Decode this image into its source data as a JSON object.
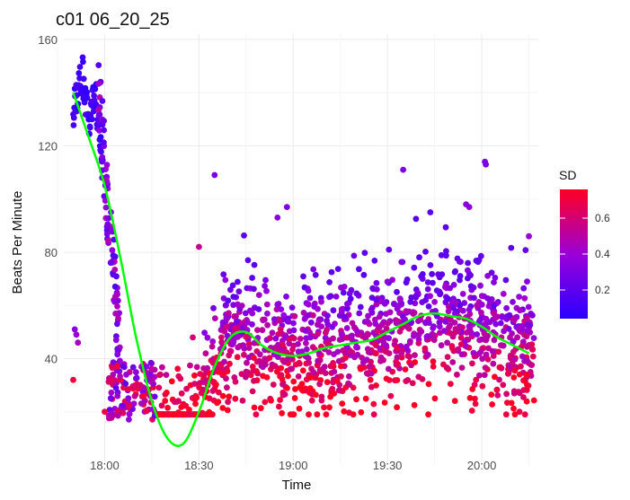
{
  "chart_data": {
    "type": "scatter",
    "title": "c01 06_20_25",
    "xlabel": "Time",
    "ylabel": "Beats Per Minute",
    "x_ticks": [
      "18:00",
      "18:30",
      "19:00",
      "19:30",
      "20:00"
    ],
    "x_tick_minutes": [
      1080,
      1110,
      1140,
      1170,
      1200
    ],
    "xlim_minutes": [
      1067,
      1218
    ],
    "y_ticks": [
      40,
      80,
      120,
      160
    ],
    "ylim": [
      0,
      162
    ],
    "grid": true,
    "legend": {
      "title": "SD",
      "ticks": [
        0.2,
        0.4,
        0.6
      ],
      "range": [
        0.04,
        0.76
      ],
      "colors": {
        "low": "#2b00ff",
        "mid": "#9b00d8",
        "high": "#ff0022"
      },
      "placement": "right"
    },
    "smooth_line": {
      "color": "#00ff00",
      "minutes": [
        1070,
        1075,
        1080,
        1085,
        1090,
        1095,
        1100,
        1105,
        1110,
        1115,
        1120,
        1125,
        1130,
        1135,
        1140,
        1145,
        1150,
        1155,
        1160,
        1165,
        1170,
        1175,
        1180,
        1185,
        1190,
        1195,
        1200,
        1205,
        1210,
        1215
      ],
      "bpm": [
        140,
        123,
        105,
        78,
        48,
        24,
        10,
        8,
        20,
        37,
        48,
        50,
        45,
        42,
        41,
        42,
        44,
        45,
        46,
        47,
        50,
        53,
        56,
        57,
        56,
        55,
        52,
        48,
        45,
        42
      ]
    },
    "series": [
      {
        "segment": "early-high",
        "minutes": [
          1070,
          1073,
          1075,
          1078
        ],
        "bpm_range": [
          125,
          155
        ],
        "sd": 0.1
      },
      {
        "segment": "descent",
        "minutes": [
          1078,
          1085
        ],
        "bpm_range": [
          20,
          140
        ],
        "sd": 0.3
      },
      {
        "segment": "trough",
        "minutes": [
          1080,
          1096
        ],
        "bpm_range": [
          15,
          40
        ],
        "sd": 0.6
      },
      {
        "segment": "plateau",
        "minutes": [
          1096,
          1217
        ],
        "bpm_range": [
          20,
          100
        ],
        "sd": 0.55
      }
    ],
    "outliers": [
      {
        "min": 1070,
        "bpm": 32,
        "sd": 0.7
      },
      {
        "min": 1070.5,
        "bpm": 51,
        "sd": 0.35
      },
      {
        "min": 1071,
        "bpm": 49,
        "sd": 0.4
      },
      {
        "min": 1071.5,
        "bpm": 46,
        "sd": 0.45
      },
      {
        "min": 1080,
        "bpm": 20,
        "sd": 0.7
      },
      {
        "min": 1110,
        "bpm": 82,
        "sd": 0.55
      },
      {
        "min": 1115,
        "bpm": 109,
        "sd": 0.3
      },
      {
        "min": 1135,
        "bpm": 93,
        "sd": 0.35
      },
      {
        "min": 1138,
        "bpm": 97,
        "sd": 0.3
      },
      {
        "min": 1175,
        "bpm": 111,
        "sd": 0.3
      },
      {
        "min": 1195,
        "bpm": 98,
        "sd": 0.35
      },
      {
        "min": 1196,
        "bpm": 97,
        "sd": 0.35
      },
      {
        "min": 1201,
        "bpm": 114,
        "sd": 0.3
      },
      {
        "min": 1201.3,
        "bpm": 113,
        "sd": 0.3
      },
      {
        "min": 1215,
        "bpm": 86,
        "sd": 0.4
      },
      {
        "min": 1198,
        "bpm": 23,
        "sd": 0.7
      },
      {
        "min": 1212,
        "bpm": 20,
        "sd": 0.7
      }
    ]
  }
}
